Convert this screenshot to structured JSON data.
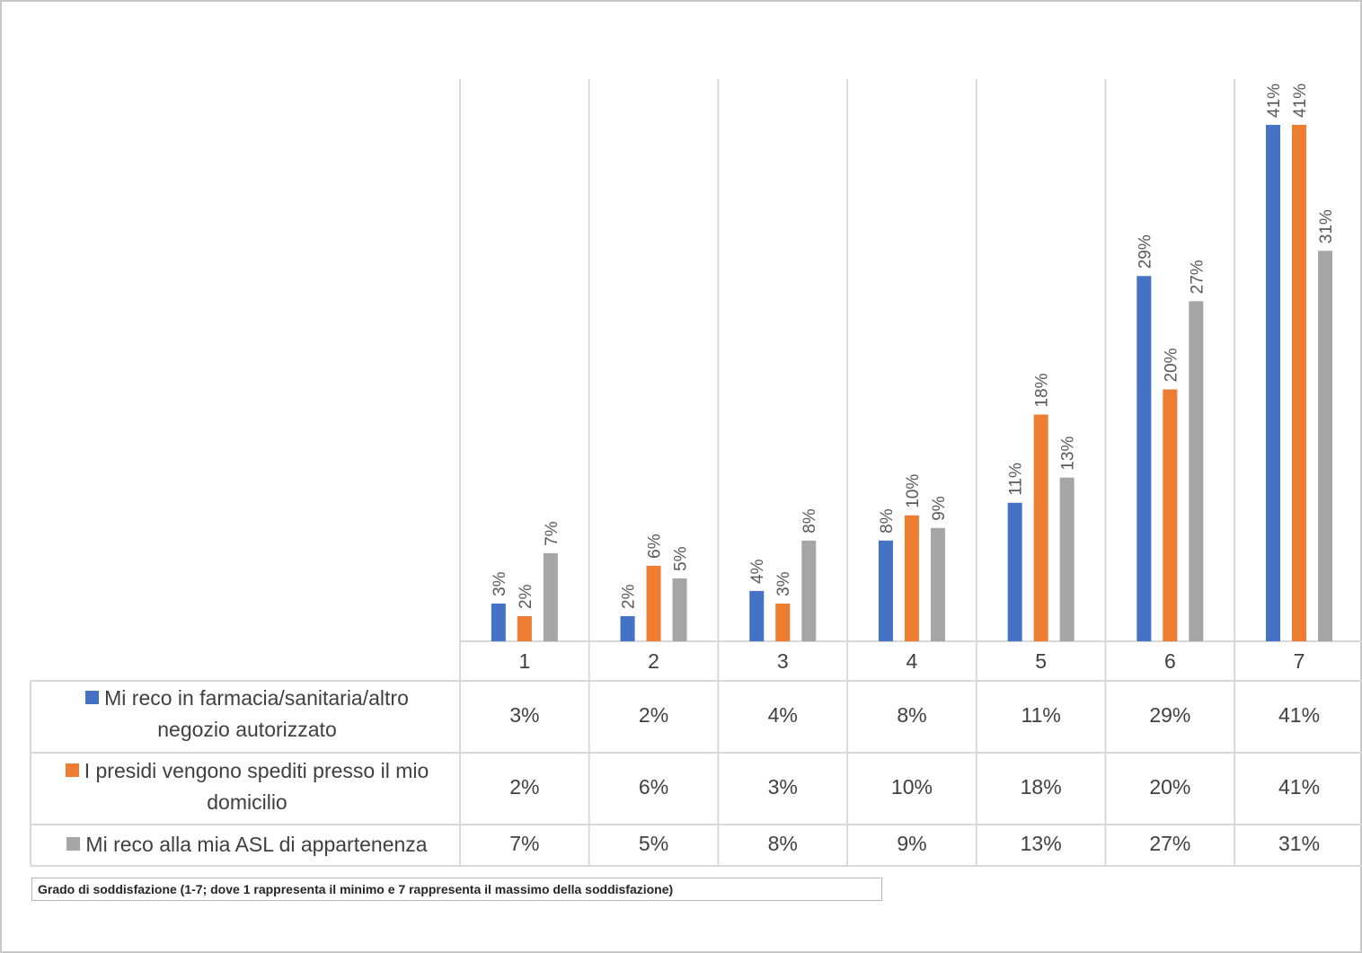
{
  "chart_data": {
    "type": "bar",
    "title": "",
    "xlabel": "Grado di soddisfazione (1-7; dove 1 rappresenta il minimo e 7 rappresenta il massimo della soddisfazione)",
    "ylabel": "",
    "ylim": [
      0,
      45
    ],
    "categories": [
      "1",
      "2",
      "3",
      "4",
      "5",
      "6",
      "7"
    ],
    "series": [
      {
        "name": "Mi reco in farmacia/sanitaria/altro negozio autorizzato",
        "color": "#4472c4",
        "values": [
          3,
          2,
          4,
          8,
          11,
          29,
          41
        ],
        "labels": [
          "3%",
          "2%",
          "4%",
          "8%",
          "11%",
          "29%",
          "41%"
        ]
      },
      {
        "name": "I presidi vengono spediti presso il mio domicilio",
        "color": "#ed7d31",
        "values": [
          2,
          6,
          3,
          10,
          18,
          20,
          41
        ],
        "labels": [
          "2%",
          "6%",
          "3%",
          "10%",
          "18%",
          "20%",
          "41%"
        ]
      },
      {
        "name": "Mi reco alla mia ASL di appartenenza",
        "color": "#a5a5a5",
        "values": [
          7,
          5,
          8,
          9,
          13,
          27,
          31
        ],
        "labels": [
          "7%",
          "5%",
          "8%",
          "9%",
          "13%",
          "27%",
          "31%"
        ]
      }
    ]
  },
  "legend": {
    "row1_line1": "Mi reco in farmacia/sanitaria/altro",
    "row1_line2": "negozio autorizzato",
    "row2_line1": "I presidi vengono spediti presso il mio",
    "row2_line2": "domicilio",
    "row3_line1": "Mi reco alla mia ASL di appartenenza"
  },
  "footnote": "Grado di soddisfazione (1-7; dove 1 rappresenta il minimo e 7 rappresenta il massimo della soddisfazione)"
}
